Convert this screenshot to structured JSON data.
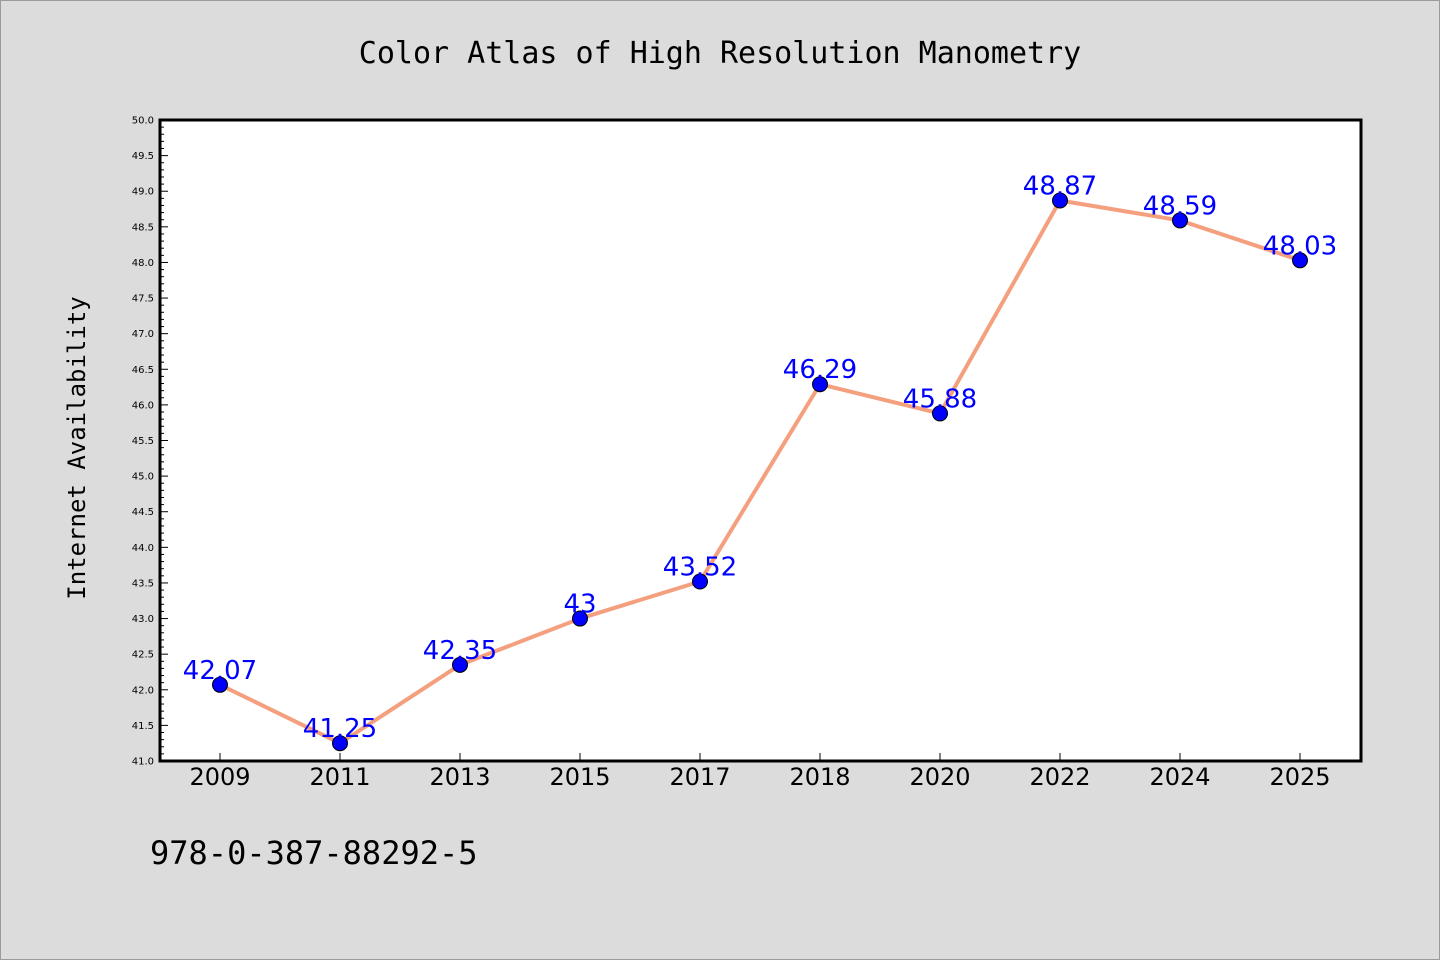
{
  "chart_data": {
    "type": "line",
    "title": "Color Atlas of High Resolution Manometry",
    "xlabel": "",
    "ylabel": "Internet Availability",
    "categories": [
      "2009",
      "2011",
      "2013",
      "2015",
      "2017",
      "2018",
      "2020",
      "2022",
      "2024",
      "2025"
    ],
    "series": [
      {
        "values": [
          42.07,
          41.25,
          42.35,
          43,
          43.52,
          46.29,
          45.88,
          48.87,
          48.59,
          48.03
        ],
        "labels": [
          "42.07",
          "41.25",
          "42.35",
          "43",
          "43.52",
          "46.29",
          "45.88",
          "48.87",
          "48.59",
          "48.03"
        ],
        "line_color": "#f4a07f",
        "marker_color": "#0000ff"
      }
    ],
    "ylim": [
      41.0,
      50.0
    ],
    "yticks": [
      "41.0",
      "41.5",
      "42.0",
      "42.5",
      "43.0",
      "43.5",
      "44.0",
      "44.5",
      "45.0",
      "45.5",
      "46.0",
      "46.5",
      "47.0",
      "47.5",
      "48.0",
      "48.5",
      "49.0",
      "49.5",
      "50.0"
    ],
    "grid": false,
    "legend": "none"
  },
  "footer": {
    "text": "978-0-387-88292-5"
  }
}
